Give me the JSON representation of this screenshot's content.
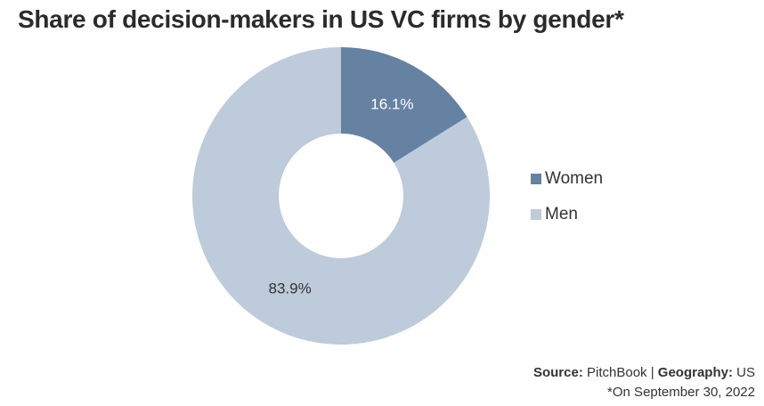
{
  "chart_data": {
    "type": "pie",
    "title": "Share of decision-makers in US VC firms by gender*",
    "categories": [
      "Women",
      "Men"
    ],
    "values": [
      16.1,
      83.9
    ],
    "labels": [
      "16.1%",
      "83.9%"
    ],
    "colors": [
      "#6682a2",
      "#bdcbdb"
    ],
    "label_colors": [
      "#ffffff",
      "#333333"
    ],
    "donut": true,
    "legend": "right"
  },
  "footer": {
    "source_label": "Source:",
    "source_value": "PitchBook",
    "separator": "|",
    "geography_label": "Geography:",
    "geography_value": "US",
    "note": "*On September 30, 2022"
  }
}
